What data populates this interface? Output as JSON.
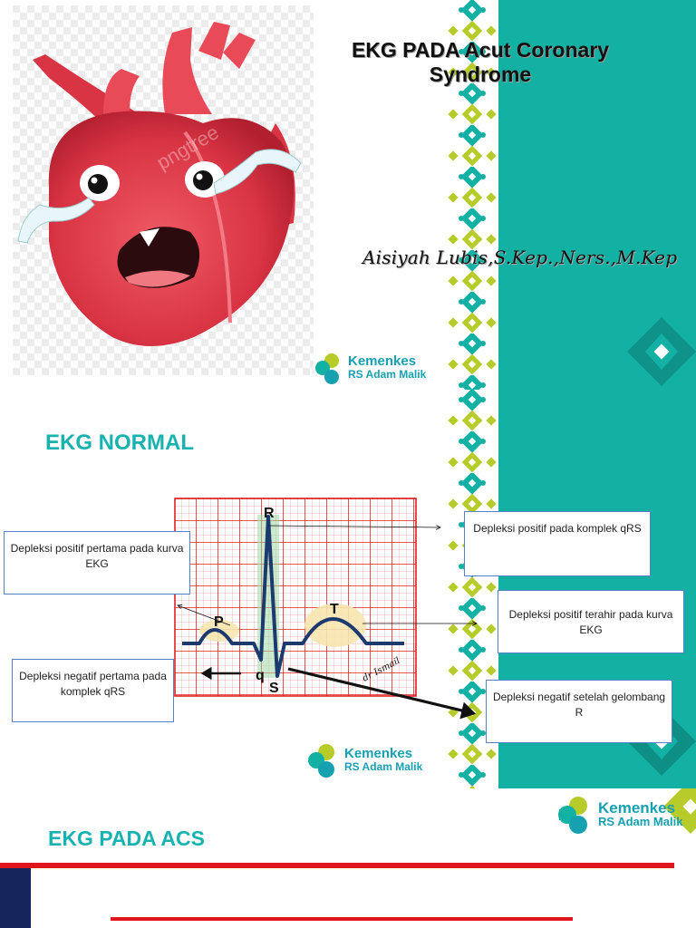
{
  "slide1": {
    "title_line1": "EKG PADA Acut Coronary",
    "title_line2": "Syndrome",
    "author": "Aisiyah Lubis,S.Kep.,Ners.,M.Kep",
    "logo": {
      "line1": "Kemenkes",
      "line2": "RS Adam Malik"
    },
    "watermark": "pngtree"
  },
  "slide2": {
    "heading": "EKG NORMAL",
    "ekg_labels": {
      "R": "R",
      "P": "P",
      "T": "T",
      "q": "q",
      "S": "S",
      "signature": "dr Ismail"
    },
    "callouts": {
      "p_wave": "Depleksi positif pertama pada kurva EKG",
      "q_wave": "Depleksi negatif pertama pada komplek qRS",
      "r_wave": "Depleksi positif pada komplek qRS",
      "t_wave": "Depleksi positif terahir pada kurva EKG",
      "s_wave": "Depleksi negatif setelah gelombang R"
    },
    "logo": {
      "line1": "Kemenkes",
      "line2": "RS Adam Malik"
    }
  },
  "slide3": {
    "heading": "EKG PADA ACS",
    "logo": {
      "line1": "Kemenkes",
      "line2": "RS Adam Malik"
    }
  },
  "colors": {
    "teal": "#13b0a4",
    "heading": "#18b3b0",
    "grid": "#e02020",
    "accent_red": "#e0161f",
    "navy": "#14265c"
  }
}
